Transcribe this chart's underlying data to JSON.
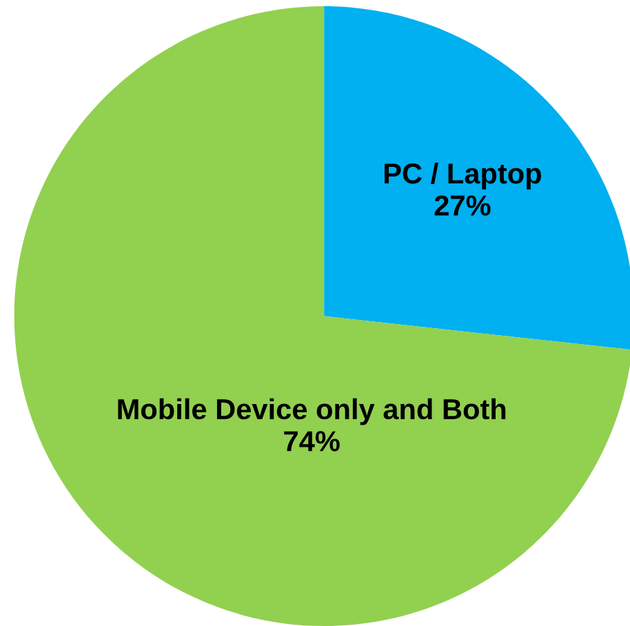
{
  "chart_data": {
    "type": "pie",
    "categories": [
      "PC / Laptop",
      "Mobile Device only and Both"
    ],
    "values": [
      27,
      74
    ],
    "value_labels": [
      "27%",
      "74%"
    ],
    "colors": [
      "#00b0f0",
      "#92d050"
    ]
  }
}
